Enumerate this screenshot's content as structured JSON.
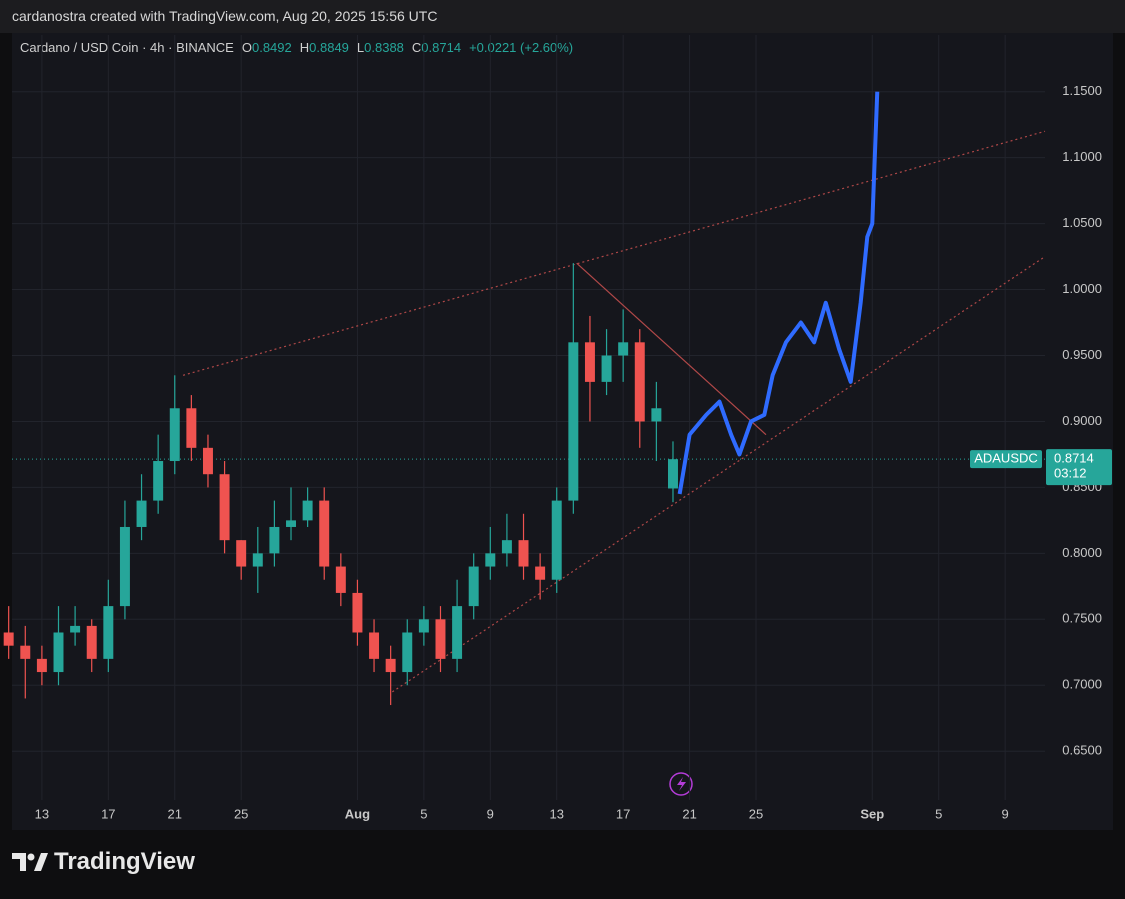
{
  "header": {
    "credit": "cardanostra created with TradingView.com, Aug 20, 2025 15:56 UTC"
  },
  "chart_data": {
    "type": "candlestick",
    "symbol": "Cardano / USD Coin · 4h · BINANCE",
    "ohlc": [
      {
        "key": "O",
        "value": "0.8492"
      },
      {
        "key": "H",
        "value": "0.8849"
      },
      {
        "key": "L",
        "value": "0.8388"
      },
      {
        "key": "C",
        "value": "0.8714"
      }
    ],
    "change": "+0.0221 (+2.60%)",
    "x": [
      192,
      193,
      194,
      195,
      196,
      197,
      198,
      199,
      200,
      201,
      202,
      203,
      204,
      205,
      206,
      207,
      208,
      209,
      210,
      211,
      212,
      213,
      214,
      215,
      216,
      217,
      218,
      219,
      220,
      221,
      222,
      223,
      224,
      225,
      226,
      227,
      228,
      229,
      230,
      231,
      232
    ],
    "open": [
      0.74,
      0.73,
      0.72,
      0.71,
      0.74,
      0.745,
      0.72,
      0.76,
      0.82,
      0.84,
      0.87,
      0.91,
      0.88,
      0.86,
      0.81,
      0.79,
      0.8,
      0.82,
      0.825,
      0.84,
      0.79,
      0.77,
      0.74,
      0.72,
      0.71,
      0.74,
      0.75,
      0.72,
      0.76,
      0.79,
      0.8,
      0.81,
      0.79,
      0.78,
      0.84,
      0.96,
      0.93,
      0.95,
      0.96,
      0.9,
      0.8492
    ],
    "high": [
      0.76,
      0.745,
      0.73,
      0.76,
      0.76,
      0.75,
      0.78,
      0.84,
      0.86,
      0.89,
      0.935,
      0.92,
      0.89,
      0.87,
      0.81,
      0.82,
      0.84,
      0.85,
      0.85,
      0.85,
      0.8,
      0.78,
      0.75,
      0.73,
      0.75,
      0.76,
      0.76,
      0.78,
      0.8,
      0.82,
      0.83,
      0.83,
      0.8,
      0.85,
      1.02,
      0.98,
      0.97,
      0.985,
      0.97,
      0.93,
      0.8849
    ],
    "low": [
      0.72,
      0.69,
      0.7,
      0.7,
      0.73,
      0.71,
      0.71,
      0.75,
      0.81,
      0.83,
      0.86,
      0.87,
      0.85,
      0.8,
      0.78,
      0.77,
      0.79,
      0.81,
      0.82,
      0.78,
      0.76,
      0.73,
      0.71,
      0.685,
      0.7,
      0.73,
      0.71,
      0.71,
      0.75,
      0.78,
      0.79,
      0.78,
      0.765,
      0.77,
      0.83,
      0.9,
      0.92,
      0.93,
      0.88,
      0.87,
      0.8388
    ],
    "close": [
      0.73,
      0.72,
      0.71,
      0.74,
      0.745,
      0.72,
      0.76,
      0.82,
      0.84,
      0.87,
      0.91,
      0.88,
      0.86,
      0.81,
      0.79,
      0.8,
      0.82,
      0.825,
      0.84,
      0.79,
      0.77,
      0.74,
      0.72,
      0.71,
      0.74,
      0.75,
      0.72,
      0.76,
      0.79,
      0.8,
      0.81,
      0.79,
      0.78,
      0.84,
      0.96,
      0.93,
      0.95,
      0.96,
      0.9,
      0.91,
      0.8714
    ],
    "up_color": "#26a69a",
    "down_color": "#ef5350",
    "projection": {
      "color": "#2f6bff",
      "x": [
        232.4,
        233,
        234,
        234.8,
        235.5,
        236,
        236.7,
        237.5,
        238,
        238.8,
        239.7,
        240.5,
        241.2,
        242,
        242.7,
        243.3,
        243.7,
        244,
        244.3
      ],
      "y": [
        0.845,
        0.89,
        0.905,
        0.915,
        0.89,
        0.875,
        0.9,
        0.905,
        0.935,
        0.96,
        0.975,
        0.96,
        0.99,
        0.955,
        0.93,
        0.99,
        1.04,
        1.05,
        1.15
      ]
    },
    "trendlines": [
      {
        "x": [
          202.5,
          254.4
        ],
        "y": [
          0.935,
          1.12
        ]
      },
      {
        "x": [
          215.1,
          254.4
        ],
        "y": [
          0.695,
          1.025
        ]
      },
      {
        "x": [
          226.2,
          237.6
        ],
        "y": [
          1.02,
          0.89
        ]
      }
    ],
    "trendline_color": "#b04848",
    "symbol_code": "ADAUSDC",
    "last_price": 0.8714,
    "countdown": "03:12",
    "xlim": [
      192.2,
      254.4
    ],
    "xticks": [
      {
        "value": 194,
        "label": "13"
      },
      {
        "value": 198,
        "label": "17"
      },
      {
        "value": 202,
        "label": "21"
      },
      {
        "value": 206,
        "label": "25"
      },
      {
        "value": 213,
        "label": "Aug"
      },
      {
        "value": 217,
        "label": "5"
      },
      {
        "value": 221,
        "label": "9"
      },
      {
        "value": 225,
        "label": "13"
      },
      {
        "value": 229,
        "label": "17"
      },
      {
        "value": 233,
        "label": "21"
      },
      {
        "value": 237,
        "label": "25"
      },
      {
        "value": 244,
        "label": "Sep"
      },
      {
        "value": 248,
        "label": "5"
      },
      {
        "value": 252,
        "label": "9"
      }
    ],
    "ylim": [
      0.613,
      1.193
    ],
    "yticks": [
      {
        "value": 0.65,
        "label": "0.6500"
      },
      {
        "value": 0.7,
        "label": "0.7000"
      },
      {
        "value": 0.75,
        "label": "0.7500"
      },
      {
        "value": 0.8,
        "label": "0.8000"
      },
      {
        "value": 0.85,
        "label": "0.8500"
      },
      {
        "value": 0.9,
        "label": "0.9000"
      },
      {
        "value": 0.95,
        "label": "0.9500"
      },
      {
        "value": 1.0,
        "label": "1.0000"
      },
      {
        "value": 1.05,
        "label": "1.0500"
      },
      {
        "value": 1.1,
        "label": "1.1000"
      },
      {
        "value": 1.15,
        "label": "1.1500"
      }
    ],
    "grid": true
  },
  "footer": {
    "brand": "TradingView"
  }
}
